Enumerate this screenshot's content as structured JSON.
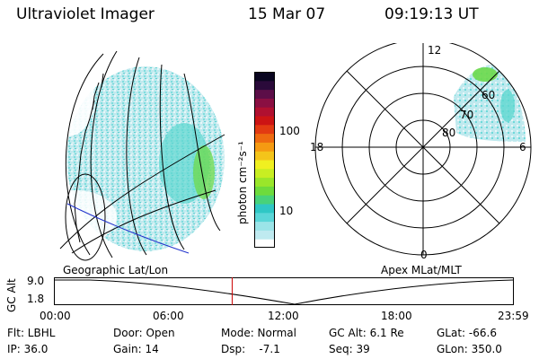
{
  "header": {
    "title": "Ultraviolet Imager",
    "date": "15 Mar 07",
    "time": "09:19:13 UT"
  },
  "colorbar": {
    "unit_label": "photon cm⁻²s⁻¹",
    "ticks": [
      "100",
      "10"
    ],
    "colors": [
      "#ffffff",
      "#bfeaf0",
      "#9be4e8",
      "#5ad6d8",
      "#2fc7c5",
      "#48d27a",
      "#6edb3c",
      "#9ae62a",
      "#c8ee22",
      "#f0f020",
      "#f4c41a",
      "#f59a12",
      "#ee6a10",
      "#e23a12",
      "#cc1414",
      "#b01030",
      "#8a0f42",
      "#5c0e48",
      "#2a0a3a",
      "#0a0620"
    ]
  },
  "left_panel": {
    "caption": "Geographic Lat/Lon"
  },
  "right_panel": {
    "caption": "Apex MLat/MLT",
    "mlt_labels": {
      "top": "12",
      "left": "18",
      "right": "6",
      "bottom": "0"
    },
    "lat_labels": [
      "60",
      "70",
      "80"
    ]
  },
  "altitude_plot": {
    "ylabel": "GC Alt",
    "y_top": "9.0",
    "y_bottom": "1.8",
    "x_ticks": [
      "00:00",
      "06:00",
      "12:00",
      "18:00",
      "23:59"
    ],
    "marker_hour": 9.32,
    "marker_color": "#cc0000"
  },
  "status": {
    "filter": "Flt: LBHL",
    "ip": "IP: 36.0",
    "door": "Door: Open",
    "gain": "Gain: 14",
    "mode": "Mode: Normal",
    "dsp": "Dsp:    -7.1",
    "gc_alt": "GC Alt: 6.1 Re",
    "seq": "Seq: 39",
    "glat": "GLat: -66.6",
    "glon": "GLon: 350.0"
  }
}
